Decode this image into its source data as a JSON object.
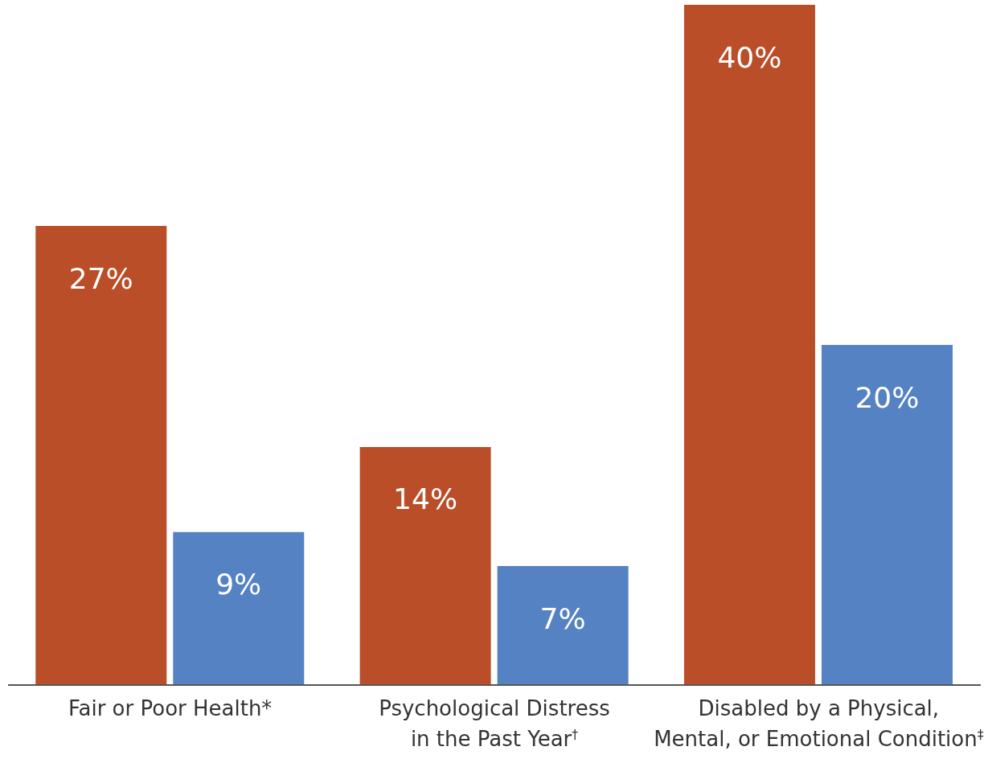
{
  "chart_data": {
    "type": "bar",
    "categories": [
      "Fair or Poor Health*",
      "Psychological Distress in the Past Year$^{†}$",
      "Disabled by a Physical, Mental, or Emotional Condition$^{‡}$"
    ],
    "series": [
      {
        "color": "#b94e28",
        "values": [
          27,
          14,
          40
        ],
        "value_labels": [
          "27%",
          "14%",
          "40%"
        ]
      },
      {
        "color": "#5582c2",
        "values": [
          9,
          7,
          20
        ],
        "value_labels": [
          "9%",
          "7%",
          "20%"
        ]
      }
    ],
    "grid": false,
    "legend": false
  }
}
